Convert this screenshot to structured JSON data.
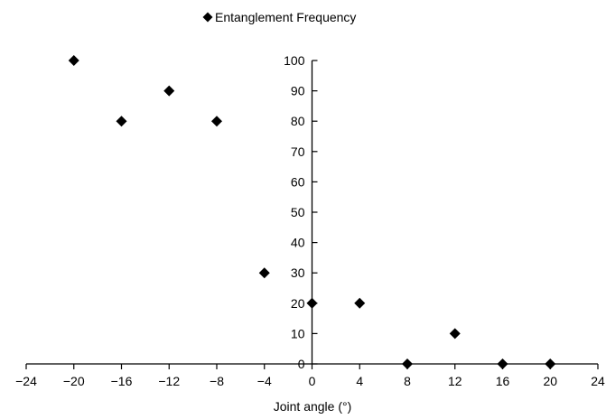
{
  "chart_data": {
    "type": "scatter",
    "legend": {
      "position": "top-center",
      "marker": "diamond"
    },
    "series": [
      {
        "name": "Entanglement Frequency",
        "color": "#000000",
        "marker": "diamond",
        "x": [
          -20,
          -16,
          -12,
          -8,
          -4,
          0,
          4,
          8,
          12,
          16,
          20
        ],
        "y": [
          100,
          80,
          90,
          80,
          30,
          20,
          20,
          0,
          10,
          0,
          0
        ]
      }
    ],
    "xlabel": "Joint angle (°)",
    "ylabel": "",
    "xlim": [
      -24,
      24
    ],
    "ylim": [
      0,
      100
    ],
    "x_ticks": [
      -24,
      -20,
      -16,
      -12,
      -8,
      -4,
      0,
      4,
      8,
      12,
      16,
      20,
      24
    ],
    "y_ticks": [
      0,
      10,
      20,
      30,
      40,
      50,
      60,
      70,
      80,
      90,
      100
    ],
    "x_tick_labels": [
      "−24",
      "−20",
      "−16",
      "−12",
      "−8",
      "−4",
      "0",
      "4",
      "8",
      "12",
      "16",
      "20",
      "24"
    ],
    "y_tick_labels": [
      "0",
      "10",
      "20",
      "30",
      "40",
      "50",
      "60",
      "70",
      "80",
      "90",
      "100"
    ],
    "grid": false
  }
}
